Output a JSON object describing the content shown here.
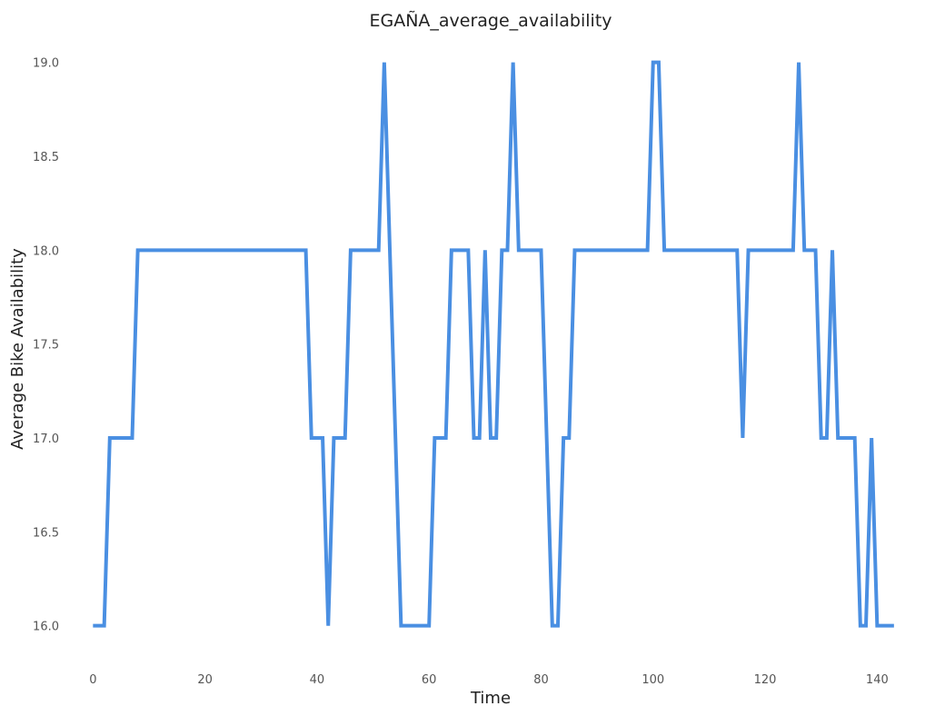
{
  "chart_data": {
    "type": "line",
    "title": "EGAÑA_average_availability",
    "xlabel": "Time",
    "ylabel": "Average Bike Availability",
    "xlim": [
      -2,
      144
    ],
    "ylim": [
      15.8,
      19.1
    ],
    "xticks": [
      0,
      20,
      40,
      60,
      80,
      100,
      120,
      140
    ],
    "yticks": [
      16.0,
      16.5,
      17.0,
      17.5,
      18.0,
      18.5,
      19.0
    ],
    "grid": false,
    "line_color": "#4a8fe2",
    "series": [
      {
        "x": [
          0,
          1,
          2,
          3,
          4,
          5,
          6,
          7,
          8,
          9,
          10,
          11,
          12,
          13,
          14,
          15,
          16,
          17,
          18,
          19,
          20,
          21,
          22,
          23,
          24,
          25,
          26,
          27,
          28,
          29,
          30,
          31,
          32,
          33,
          34,
          35,
          36,
          37,
          38,
          39,
          40,
          41,
          42,
          43,
          44,
          45,
          46,
          47,
          48,
          49,
          50,
          51,
          52,
          53,
          54,
          55,
          56,
          57,
          58,
          59,
          60,
          61,
          62,
          63,
          64,
          65,
          66,
          67,
          68,
          69,
          70,
          71,
          72,
          73,
          74,
          75,
          76,
          77,
          78,
          79,
          80,
          81,
          82,
          83,
          84,
          85,
          86,
          87,
          88,
          89,
          90,
          91,
          92,
          93,
          94,
          95,
          96,
          97,
          98,
          99,
          100,
          101,
          102,
          103,
          104,
          105,
          106,
          107,
          108,
          109,
          110,
          111,
          112,
          113,
          114,
          115,
          116,
          117,
          118,
          119,
          120,
          121,
          122,
          123,
          124,
          125,
          126,
          127,
          128,
          129,
          130,
          131,
          132,
          133,
          134,
          135,
          136,
          137,
          138,
          139,
          140,
          141,
          142,
          143
        ],
        "y": [
          16,
          16,
          16,
          17,
          17,
          17,
          17,
          17,
          18,
          18,
          18,
          18,
          18,
          18,
          18,
          18,
          18,
          18,
          18,
          18,
          18,
          18,
          18,
          18,
          18,
          18,
          18,
          18,
          18,
          18,
          18,
          18,
          18,
          18,
          18,
          18,
          18,
          18,
          18,
          17,
          17,
          17,
          16,
          17,
          17,
          17,
          18,
          18,
          18,
          18,
          18,
          18,
          19,
          18,
          17,
          16,
          16,
          16,
          16,
          16,
          16,
          17,
          17,
          17,
          18,
          18,
          18,
          18,
          17,
          17,
          18,
          17,
          17,
          18,
          18,
          19,
          18,
          18,
          18,
          18,
          18,
          17,
          16,
          16,
          17,
          17,
          18,
          18,
          18,
          18,
          18,
          18,
          18,
          18,
          18,
          18,
          18,
          18,
          18,
          18,
          19,
          19,
          18,
          18,
          18,
          18,
          18,
          18,
          18,
          18,
          18,
          18,
          18,
          18,
          18,
          18,
          17,
          18,
          18,
          18,
          18,
          18,
          18,
          18,
          18,
          18,
          19,
          18,
          18,
          18,
          17,
          17,
          18,
          17,
          17,
          17,
          17,
          16,
          16,
          17,
          16,
          16,
          16,
          16
        ]
      }
    ]
  }
}
